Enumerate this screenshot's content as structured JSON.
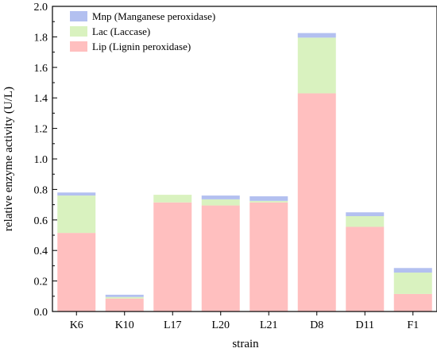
{
  "chart_data": {
    "type": "bar",
    "stacked": true,
    "xlabel": "strain",
    "ylabel": "relative enzyme activity (U/L)",
    "ylim": [
      0,
      2.0
    ],
    "yticks": [
      "0.0",
      "0.2",
      "0.4",
      "0.6",
      "0.8",
      "1.0",
      "1.2",
      "1.4",
      "1.6",
      "1.8",
      "2.0"
    ],
    "categories": [
      "K6",
      "K10",
      "L17",
      "L20",
      "L21",
      "D8",
      "D11",
      "F1"
    ],
    "series": [
      {
        "name": "Lip (Lignin peroxidase)",
        "color": "#ffbfbf",
        "values": [
          0.515,
          0.085,
          0.715,
          0.695,
          0.715,
          1.43,
          0.555,
          0.115
        ]
      },
      {
        "name": "Lac (Laccase)",
        "color": "#d9f2bf",
        "values": [
          0.245,
          0.01,
          0.05,
          0.04,
          0.01,
          0.365,
          0.07,
          0.14
        ]
      },
      {
        "name": "Mnp (Manganese peroxidase)",
        "color": "#b3c0f0",
        "values": [
          0.02,
          0.015,
          0.0,
          0.025,
          0.03,
          0.03,
          0.025,
          0.03
        ]
      }
    ],
    "legend_order": [
      "Mnp (Manganese peroxidase)",
      "Lac (Laccase)",
      "Lip (Lignin peroxidase)"
    ],
    "legend_position": "top-left",
    "grid": false
  }
}
